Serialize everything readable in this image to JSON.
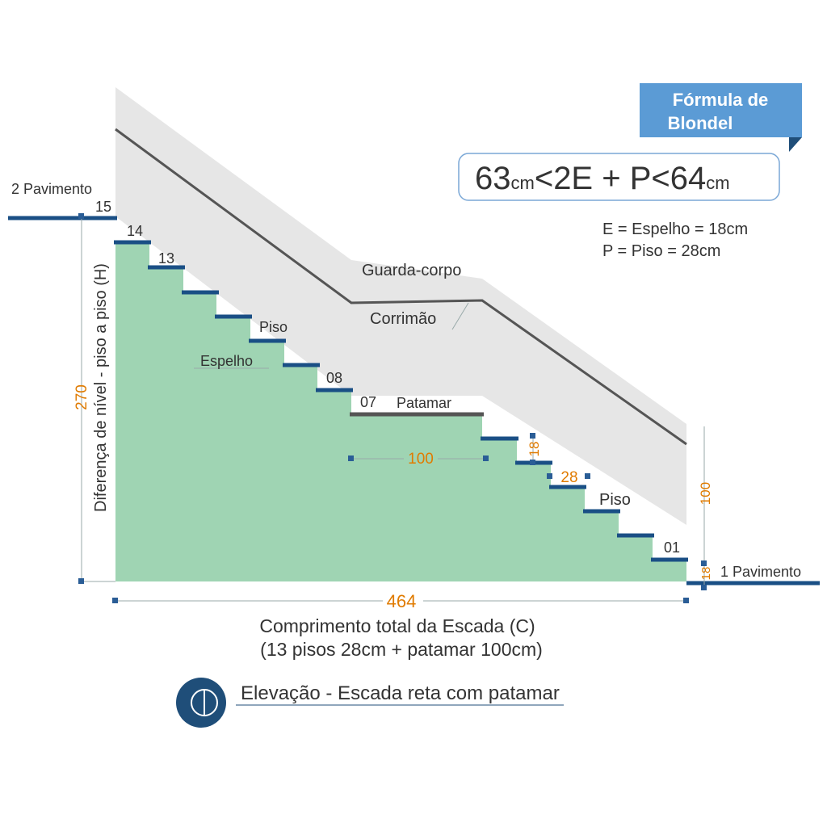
{
  "badge": {
    "lines": [
      "Fórmula de",
      "Blondel"
    ]
  },
  "formula": {
    "parts": [
      "63",
      "cm",
      "<2E + P<64",
      "cm"
    ]
  },
  "legend": [
    "E = Espelho = 18cm",
    "P = Piso = 28cm"
  ],
  "labels": {
    "upper_floor": "2 Pavimento",
    "lower_floor": "1 Pavimento",
    "guard": "Guarda-corpo",
    "handrail": "Corrimão",
    "tread_upper": "Piso",
    "riser": "Espelho",
    "landing": "Patamar",
    "tread_lower": "Piso"
  },
  "step_numbers": [
    "15",
    "14",
    "13",
    "08",
    "07",
    "01"
  ],
  "dimensions": {
    "height": "270",
    "height_label": "Diferença de nível - piso a piso (H)",
    "landing": "100",
    "riser": "18",
    "tread": "28",
    "floor_height": "100",
    "last_riser": "18",
    "total": "464"
  },
  "caption": [
    "Comprimento total da Escada (C)",
    "(13 pisos 28cm + patamar 100cm)"
  ],
  "title": "Elevação - Escada reta com patamar"
}
